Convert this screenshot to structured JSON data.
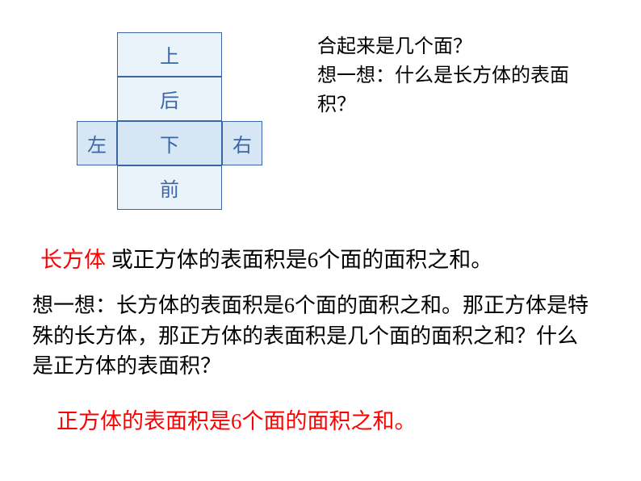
{
  "diagram": {
    "cells": {
      "top": {
        "label": "上"
      },
      "back": {
        "label": "后"
      },
      "left": {
        "label": "左"
      },
      "bottom": {
        "label": "下"
      },
      "right": {
        "label": "右"
      },
      "front": {
        "label": "前"
      }
    },
    "colors": {
      "border": "#3a66a6",
      "text": "#3a66a6",
      "fill_light": "#eaf2fa",
      "fill_mid": "#d6e6f5"
    },
    "font_size": 24
  },
  "question": {
    "line1": "合起来是几个面？",
    "line2": "想一想：什么是长方体的表面积？",
    "color": "#000000",
    "font_size": 24
  },
  "statement1": {
    "red_part": "长方体",
    "black_part": " 或正方体的表面积是6个面的面积之和。",
    "red_color": "#ff0000",
    "black_color": "#000000",
    "font_size": 27
  },
  "think": {
    "text": "想一想：长方体的表面积是6个面的面积之和。那正方体是特殊的长方体，那正方体的表面积是几个面的面积之和？什么是正方体的表面积？",
    "color": "#000000",
    "font_size": 26
  },
  "statement2": {
    "text": "正方体的表面积是6个面的面积之和。",
    "color": "#ff0000",
    "font_size": 27
  }
}
